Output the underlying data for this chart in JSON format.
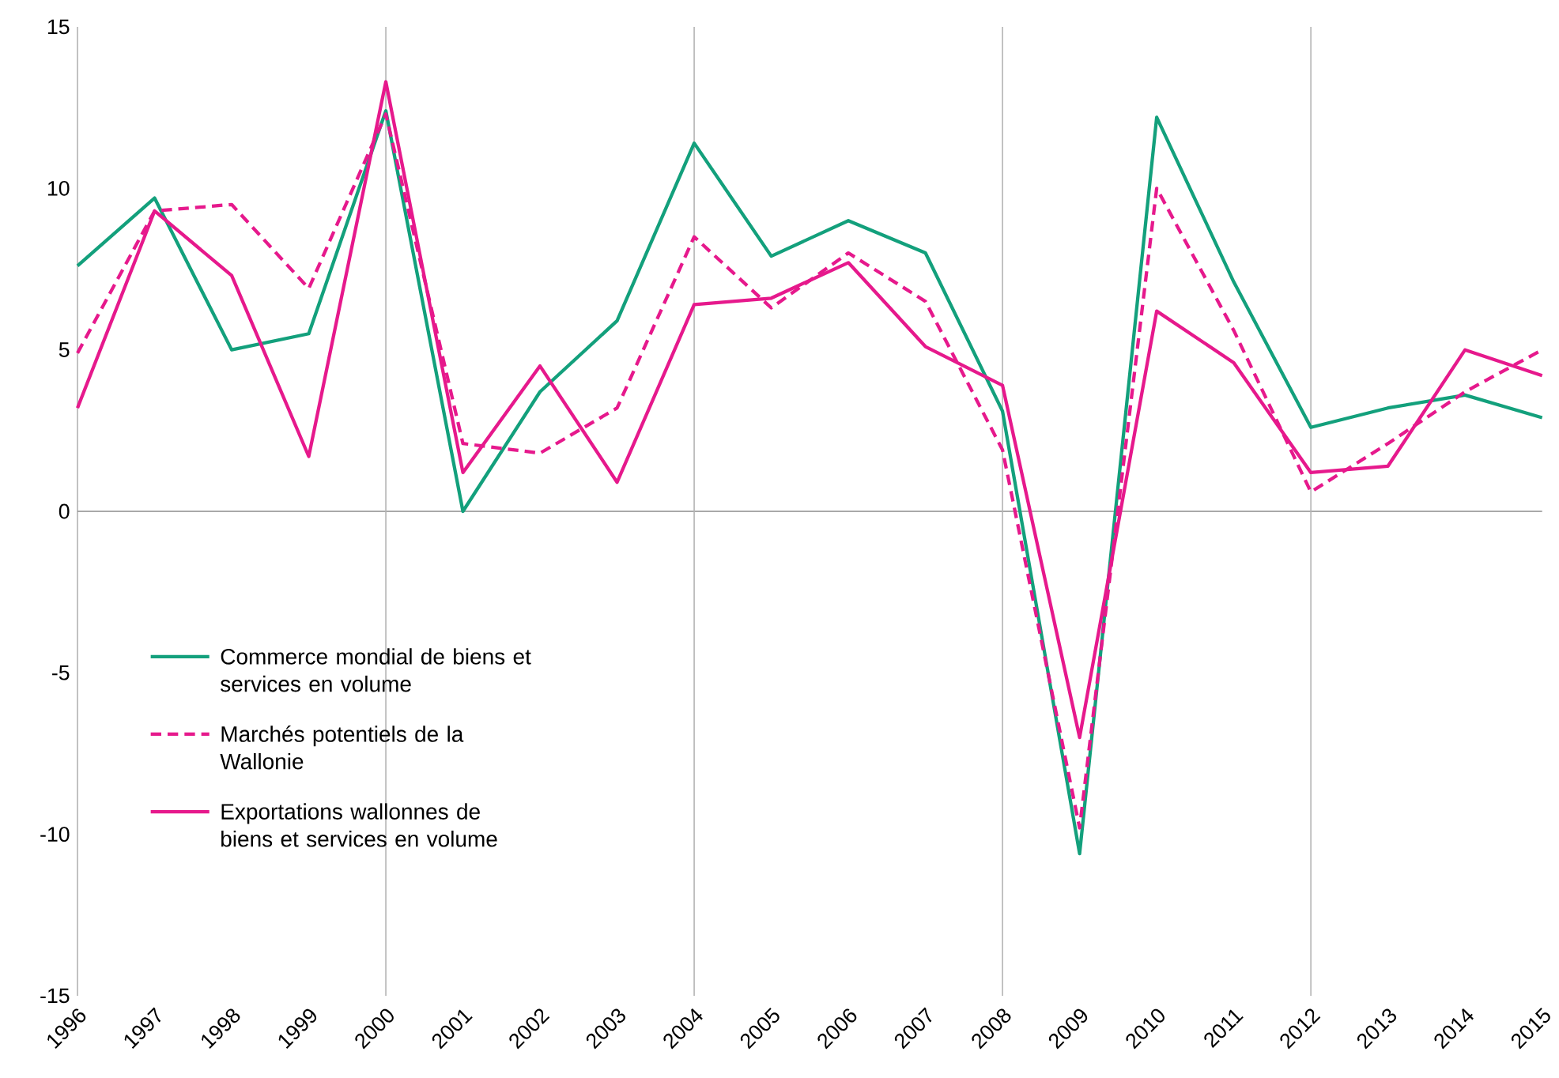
{
  "chart_data": {
    "type": "line",
    "x": [
      1996,
      1997,
      1998,
      1999,
      2000,
      2001,
      2002,
      2003,
      2004,
      2005,
      2006,
      2007,
      2008,
      2009,
      2010,
      2011,
      2012,
      2013,
      2014,
      2015
    ],
    "series": [
      {
        "name": "Commerce mondial de biens et services en volume",
        "color": "#13a07c",
        "line_style": "solid",
        "values": [
          7.6,
          9.7,
          5.0,
          5.5,
          12.4,
          0.0,
          3.7,
          5.9,
          11.4,
          7.9,
          9.0,
          8.0,
          3.1,
          -10.6,
          12.2,
          7.1,
          2.6,
          3.2,
          3.6,
          2.9
        ]
      },
      {
        "name": "Marchés potentiels de la Wallonie",
        "color": "#e6198c",
        "line_style": "dashed",
        "values": [
          4.9,
          9.3,
          9.5,
          6.9,
          12.3,
          2.1,
          1.8,
          3.2,
          8.5,
          6.3,
          8.0,
          6.5,
          1.9,
          -9.8,
          10.0,
          5.6,
          0.6,
          2.1,
          3.7,
          5.0
        ]
      },
      {
        "name": "Exportations wallonnes de biens et services en volume",
        "color": "#e6198c",
        "line_style": "solid",
        "values": [
          3.2,
          9.3,
          7.3,
          1.7,
          13.3,
          1.2,
          4.5,
          0.9,
          6.4,
          6.6,
          7.7,
          5.1,
          3.9,
          -7.0,
          6.2,
          4.6,
          1.2,
          1.4,
          5.0,
          4.2
        ]
      }
    ],
    "xlim": [
      1996,
      2015
    ],
    "xticks": [
      1996,
      1997,
      1998,
      1999,
      2000,
      2001,
      2002,
      2003,
      2004,
      2005,
      2006,
      2007,
      2008,
      2009,
      2010,
      2011,
      2012,
      2013,
      2014,
      2015
    ],
    "ylim": [
      -15,
      15
    ],
    "yticks": [
      -15,
      -10,
      -5,
      0,
      5,
      10,
      15
    ],
    "ref_lines": [
      {
        "axis": "y",
        "value": 0,
        "color": "#8c8c8c"
      },
      {
        "axis": "x",
        "value": 2000,
        "color": "#b4b4b4"
      },
      {
        "axis": "x",
        "value": 2004,
        "color": "#b4b4b4"
      },
      {
        "axis": "x",
        "value": 2008,
        "color": "#b4b4b4"
      },
      {
        "axis": "x",
        "value": 2012,
        "color": "#b4b4b4"
      }
    ],
    "legend": "left"
  }
}
